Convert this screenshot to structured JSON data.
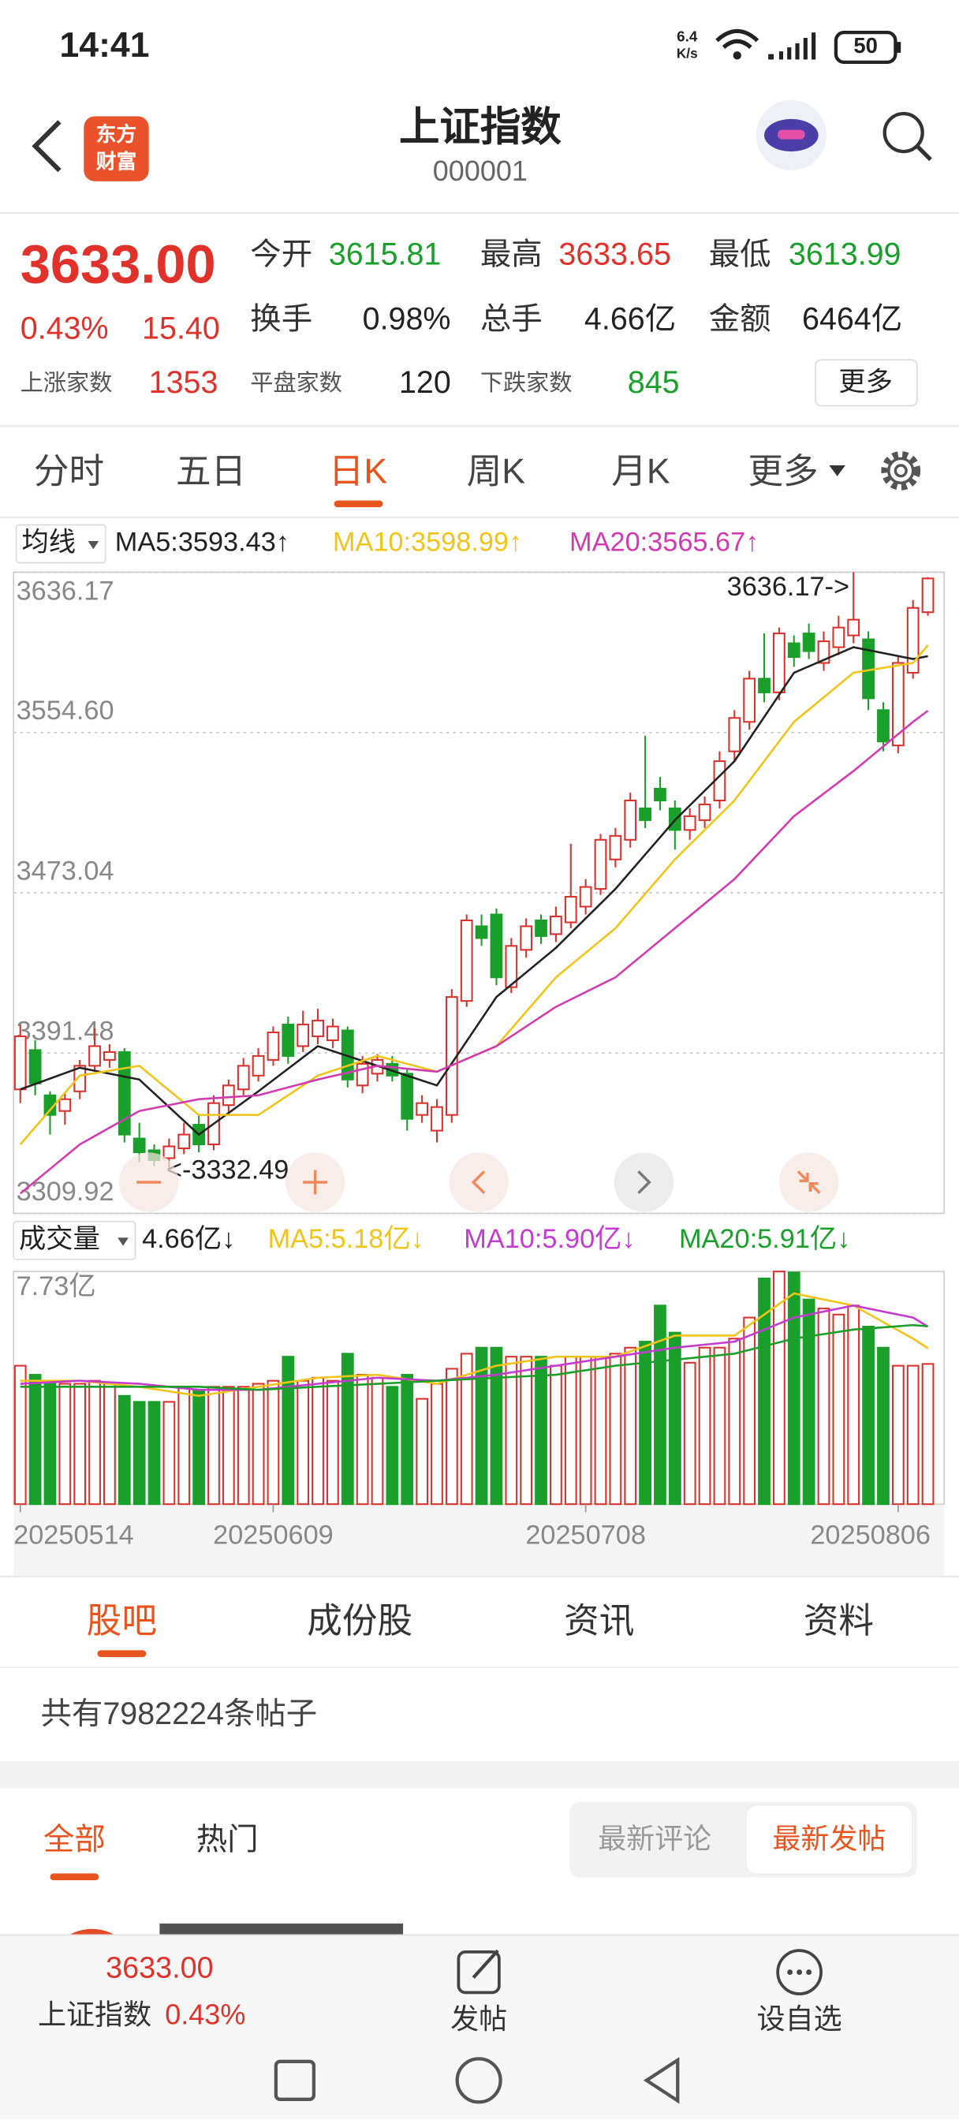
{
  "status_bar": {
    "time": "14:41",
    "net_speed": "6.4",
    "net_unit": "K/s",
    "battery": "50"
  },
  "header": {
    "logo": [
      "东方",
      "财富"
    ],
    "title": "上证指数",
    "code": "000001"
  },
  "quote": {
    "price": "3633.00",
    "change_pct": "0.43%",
    "change": "15.40",
    "stats": [
      {
        "label": "今开",
        "value": "3615.81"
      },
      {
        "label": "最高",
        "value": "3633.65"
      },
      {
        "label": "最低",
        "value": "3613.99"
      },
      {
        "label": "换手",
        "value": "0.98%"
      },
      {
        "label": "总手",
        "value": "4.66亿"
      },
      {
        "label": "金额",
        "value": "6464亿"
      }
    ],
    "breadth": [
      {
        "label": "上涨家数",
        "value": "1353"
      },
      {
        "label": "平盘家数",
        "value": "120"
      },
      {
        "label": "下跌家数",
        "value": "845"
      }
    ],
    "more": "更多"
  },
  "period_tabs": {
    "items": [
      "分时",
      "五日",
      "日K",
      "周K",
      "月K",
      "更多"
    ],
    "active": 2
  },
  "chart_data": [
    {
      "type": "candlestick",
      "indicator": "均线",
      "legend": [
        "MA5:3593.43↑",
        "MA10:3598.99↑",
        "MA20:3565.67↑"
      ],
      "ylim": [
        3309.92,
        3636.17
      ],
      "yticks": [
        3309.92,
        3391.48,
        3473.04,
        {
          "value": 3554.6,
          "label": "3554.60"
        },
        3636.17
      ],
      "grid": true,
      "up_color": "#d9312b",
      "down_color": "#1a9f2a",
      "open": [
        3373,
        3393,
        3370,
        3362,
        3372,
        3385,
        3388,
        3392,
        3348,
        3342,
        3338,
        3343,
        3355,
        3345,
        3365,
        3373,
        3380,
        3388,
        3406,
        3395,
        3400,
        3398,
        3403,
        3375,
        3381,
        3386,
        3381,
        3360,
        3352,
        3360,
        3418,
        3456,
        3462,
        3425,
        3444,
        3459,
        3452,
        3458,
        3466,
        3475,
        3490,
        3500,
        3516,
        3526,
        3516,
        3505,
        3510,
        3520,
        3545,
        3560,
        3582,
        3575,
        3600,
        3605,
        3590,
        3598,
        3604,
        3602,
        3566,
        3548,
        3585,
        3615.81
      ],
      "high": [
        3406,
        3398,
        3372,
        3371,
        3388,
        3404,
        3396,
        3394,
        3356,
        3345,
        3348,
        3356,
        3360,
        3370,
        3378,
        3389,
        3394,
        3405,
        3410,
        3413,
        3414,
        3409,
        3405,
        3390,
        3391,
        3390,
        3384,
        3370,
        3368,
        3424,
        3462,
        3462,
        3465,
        3450,
        3460,
        3462,
        3466,
        3498,
        3480,
        3503,
        3506,
        3524,
        3553,
        3532,
        3520,
        3516,
        3522,
        3545,
        3566,
        3586,
        3605,
        3608,
        3604,
        3610,
        3606,
        3614,
        3636.17,
        3606,
        3570,
        3594,
        3622,
        3633.65
      ],
      "low": [
        3366,
        3370,
        3350,
        3355,
        3368,
        3382,
        3384,
        3346,
        3336,
        3334,
        3332.49,
        3340,
        3341,
        3342,
        3360,
        3370,
        3377,
        3385,
        3386,
        3392,
        3396,
        3394,
        3374,
        3371,
        3377,
        3377,
        3352,
        3356,
        3346,
        3356,
        3415,
        3446,
        3426,
        3422,
        3440,
        3447,
        3448,
        3455,
        3462,
        3472,
        3486,
        3496,
        3506,
        3515,
        3495,
        3500,
        3506,
        3516,
        3540,
        3556,
        3570,
        3571,
        3588,
        3592,
        3586,
        3594,
        3600,
        3566,
        3545,
        3544,
        3582,
        3613.99
      ],
      "close": [
        3400,
        3376,
        3360,
        3368,
        3385,
        3395,
        3392,
        3350,
        3341,
        3337,
        3344,
        3350,
        3345,
        3366,
        3375,
        3385,
        3390,
        3402,
        3390,
        3406,
        3408,
        3405,
        3378,
        3386,
        3388,
        3380,
        3358,
        3366,
        3364,
        3420,
        3459,
        3450,
        3430,
        3446,
        3456,
        3451,
        3461,
        3471,
        3476,
        3500,
        3502,
        3520,
        3510,
        3520,
        3505,
        3512,
        3518,
        3540,
        3562,
        3582,
        3575,
        3605,
        3593,
        3596,
        3601,
        3608,
        3612,
        3572,
        3550,
        3590,
        3618,
        3633
      ],
      "annotations": [
        "3636.17->",
        "<-3332.49"
      ],
      "lines": [
        {
          "color": "#222222",
          "x": [
            0,
            4,
            8,
            12,
            16,
            20,
            24,
            28,
            32,
            36,
            40,
            44,
            48,
            52,
            56,
            60,
            61
          ],
          "values": [
            3373,
            3384,
            3378,
            3350,
            3372,
            3395,
            3385,
            3375,
            3420,
            3445,
            3475,
            3510,
            3540,
            3585,
            3598,
            3592,
            3593.43
          ]
        },
        {
          "color": "#f0c419",
          "x": [
            0,
            4,
            8,
            12,
            16,
            20,
            24,
            28,
            32,
            36,
            40,
            44,
            48,
            52,
            56,
            60,
            61
          ],
          "values": [
            3345,
            3380,
            3385,
            3360,
            3360,
            3380,
            3390,
            3382,
            3395,
            3430,
            3455,
            3490,
            3520,
            3560,
            3585,
            3590,
            3598.99
          ]
        },
        {
          "color": "#d23bb0",
          "x": [
            0,
            4,
            8,
            12,
            16,
            20,
            24,
            28,
            32,
            36,
            40,
            44,
            48,
            52,
            56,
            60,
            61
          ],
          "values": [
            3320,
            3345,
            3362,
            3368,
            3370,
            3378,
            3385,
            3382,
            3395,
            3415,
            3430,
            3455,
            3480,
            3512,
            3535,
            3560,
            3565.67
          ]
        }
      ]
    },
    {
      "type": "bar",
      "indicator": "成交量",
      "total": "4.66亿↓",
      "legend": [
        "MA5:5.18亿↓",
        "MA10:5.90亿↓",
        "MA20:5.91亿↓"
      ],
      "ylim": [
        0,
        7.73
      ],
      "yticks": [
        {
          "value": 7.73,
          "label": "7.73亿"
        }
      ],
      "xticks": [
        {
          "value": 0,
          "label": "20250514"
        },
        {
          "value": 17,
          "label": "20250609"
        },
        {
          "value": 38,
          "label": "20250708"
        },
        {
          "value": 59,
          "label": "20250806"
        }
      ],
      "values": [
        4.6,
        4.3,
        4.0,
        4.0,
        4.0,
        4.1,
        4.0,
        3.6,
        3.4,
        3.4,
        3.4,
        3.9,
        3.8,
        3.9,
        3.9,
        3.9,
        4.0,
        4.1,
        4.9,
        4.1,
        4.2,
        4.1,
        5.0,
        4.3,
        4.2,
        3.9,
        4.3,
        3.5,
        4.0,
        4.5,
        5.0,
        5.2,
        5.2,
        4.9,
        4.9,
        4.9,
        4.6,
        4.9,
        4.9,
        4.9,
        5.0,
        5.2,
        5.4,
        6.6,
        5.7,
        4.7,
        5.2,
        5.2,
        5.5,
        6.2,
        7.5,
        7.73,
        7.7,
        6.8,
        6.5,
        6.3,
        6.6,
        5.9,
        5.2,
        4.6,
        4.6,
        4.66
      ],
      "lines": [
        {
          "color": "#f0c419",
          "x": [
            0,
            4,
            8,
            12,
            16,
            20,
            24,
            28,
            32,
            36,
            40,
            44,
            48,
            52,
            56,
            60,
            61
          ],
          "values": [
            4.1,
            4.1,
            3.9,
            3.6,
            3.9,
            4.2,
            4.3,
            4.0,
            4.6,
            4.9,
            4.9,
            5.6,
            5.6,
            7.0,
            6.6,
            5.5,
            5.18
          ]
        },
        {
          "color": "#c43bd0",
          "x": [
            0,
            4,
            8,
            12,
            16,
            20,
            24,
            28,
            32,
            36,
            40,
            44,
            48,
            52,
            56,
            60,
            61
          ],
          "values": [
            4.0,
            4.1,
            4.0,
            3.8,
            3.8,
            4.0,
            4.2,
            4.1,
            4.3,
            4.6,
            4.9,
            5.2,
            5.4,
            6.2,
            6.6,
            6.2,
            5.9
          ]
        },
        {
          "color": "#1a9f2a",
          "x": [
            0,
            4,
            8,
            12,
            16,
            20,
            24,
            28,
            32,
            36,
            40,
            44,
            48,
            52,
            56,
            60,
            61
          ],
          "values": [
            3.9,
            3.9,
            3.9,
            3.9,
            3.8,
            3.9,
            4.0,
            4.1,
            4.2,
            4.3,
            4.6,
            4.8,
            5.0,
            5.5,
            5.8,
            5.95,
            5.91
          ]
        }
      ]
    }
  ],
  "community_tabs": {
    "items": [
      "股吧",
      "成份股",
      "资讯",
      "资料"
    ],
    "active": 0
  },
  "post_count": "共有7982224条帖子",
  "filter_tabs": {
    "items": [
      "全部",
      "热门"
    ],
    "active": 0,
    "sort": [
      "最新评论",
      "最新发帖"
    ],
    "sort_active": 1
  },
  "bottom_bar": {
    "price": "3633.00",
    "name": "上证指数",
    "change_pct": "0.43%",
    "actions": [
      "发帖",
      "设自选"
    ]
  }
}
